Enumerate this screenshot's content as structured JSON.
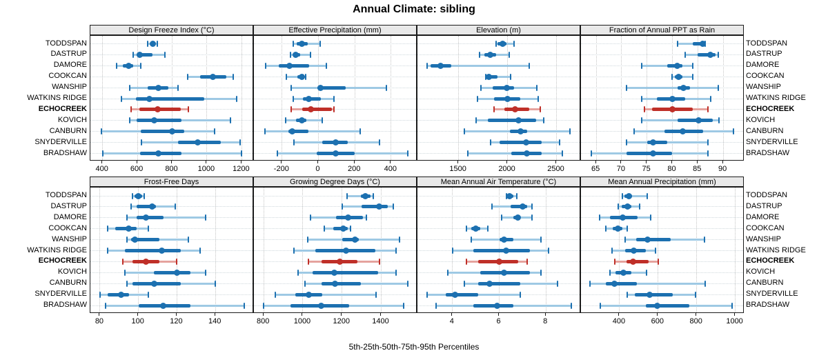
{
  "title": "Annual Climate: sibling",
  "caption": "5th-25th-50th-75th-95th Percentiles",
  "sites": [
    "TODDSPAN",
    "DASTRUP",
    "DAMORE",
    "COOKCAN",
    "WANSHIP",
    "WATKINS RIDGE",
    "ECHOCREEK",
    "KOVICH",
    "CANBURN",
    "SNYDERVILLE",
    "BRADSHAW"
  ],
  "highlight_site": "ECHOCREEK",
  "colors": {
    "series_dark": "#1c70b0",
    "series_light": "#9ec9e4",
    "highlight_dark": "#bf2f28",
    "highlight_light": "#e5a29d",
    "strip_bg": "#e9e9e9",
    "grid": "#c3c3c3"
  },
  "chart_data": [
    {
      "type": "dotplot-percentiles",
      "title": "Design Freeze Index (°C)",
      "row": 0,
      "col": 0,
      "xlim": [
        330,
        1270
      ],
      "ticks": [
        400,
        600,
        800,
        1000,
        1200
      ],
      "percentiles": [
        5,
        25,
        50,
        75,
        95
      ],
      "values": [
        [
          660,
          675,
          690,
          700,
          715
        ],
        [
          575,
          595,
          615,
          685,
          760
        ],
        [
          480,
          515,
          550,
          575,
          620
        ],
        [
          890,
          960,
          1035,
          1110,
          1150
        ],
        [
          555,
          660,
          720,
          780,
          835
        ],
        [
          510,
          590,
          670,
          985,
          1170
        ],
        [
          565,
          610,
          715,
          850,
          895
        ],
        [
          555,
          595,
          695,
          855,
          1135
        ],
        [
          395,
          620,
          800,
          870,
          1045
        ],
        [
          625,
          835,
          945,
          1080,
          1190
        ],
        [
          400,
          615,
          720,
          855,
          1200
        ]
      ]
    },
    {
      "type": "dotplot-percentiles",
      "title": "Effective Precipitation (mm)",
      "row": 0,
      "col": 1,
      "xlim": [
        -355,
        545
      ],
      "ticks": [
        -200,
        0,
        200,
        400
      ],
      "percentiles": [
        5,
        25,
        50,
        75,
        95
      ],
      "values": [
        [
          -140,
          -120,
          -90,
          -60,
          10
        ],
        [
          -155,
          -140,
          -125,
          -100,
          -45
        ],
        [
          -290,
          -220,
          -160,
          -50,
          45
        ],
        [
          -177,
          -114,
          -92,
          -76,
          -72
        ],
        [
          -150,
          -5,
          10,
          150,
          375
        ],
        [
          -140,
          -85,
          -55,
          15,
          85
        ],
        [
          -150,
          -90,
          -40,
          75,
          85
        ],
        [
          -180,
          -125,
          -90,
          -65,
          20
        ],
        [
          -295,
          -165,
          -145,
          -55,
          230
        ],
        [
          -135,
          20,
          95,
          160,
          335
        ],
        [
          -225,
          -10,
          95,
          200,
          490
        ]
      ]
    },
    {
      "type": "dotplot-percentiles",
      "title": "Elevation (m)",
      "row": 0,
      "col": 2,
      "xlim": [
        1080,
        2750
      ],
      "ticks": [
        1500,
        2000,
        2500
      ],
      "percentiles": [
        5,
        25,
        50,
        75,
        95
      ],
      "values": [
        [
          1885,
          1900,
          1950,
          1990,
          2065
        ],
        [
          1715,
          1765,
          1820,
          1885,
          2015
        ],
        [
          1180,
          1215,
          1315,
          1425,
          2225
        ],
        [
          1775,
          1785,
          1812,
          1895,
          2030
        ],
        [
          1730,
          1845,
          1990,
          2070,
          2300
        ],
        [
          1690,
          1860,
          2000,
          2130,
          2315
        ],
        [
          1865,
          1965,
          2080,
          2225,
          2335
        ],
        [
          1680,
          1800,
          2115,
          2295,
          2370
        ],
        [
          1560,
          2025,
          2135,
          2200,
          2640
        ],
        [
          1825,
          1915,
          2190,
          2350,
          2535
        ],
        [
          1595,
          2035,
          2195,
          2350,
          2560
        ]
      ]
    },
    {
      "type": "dotplot-percentiles",
      "title": "Fraction of Annual PPT as Rain",
      "row": 0,
      "col": 3,
      "xlim": [
        62,
        94.2
      ],
      "ticks": [
        65,
        70,
        75,
        80,
        85,
        90
      ],
      "percentiles": [
        5,
        25,
        50,
        75,
        95
      ],
      "values": [
        [
          81,
          84,
          86,
          86.3,
          86.5
        ],
        [
          82.5,
          85,
          87.5,
          88.5,
          89
        ],
        [
          74,
          79,
          81,
          82,
          84
        ],
        [
          80,
          80.5,
          81.2,
          82,
          84
        ],
        [
          71,
          81,
          82.2,
          83.5,
          89
        ],
        [
          74,
          77,
          80,
          82.5,
          87.5
        ],
        [
          74.5,
          76,
          80,
          84,
          87
        ],
        [
          74,
          81,
          85.2,
          88,
          89.2
        ],
        [
          72.5,
          78.5,
          82,
          86,
          92
        ],
        [
          71,
          75,
          76.2,
          79,
          87
        ],
        [
          64,
          71,
          76.2,
          80,
          87
        ]
      ]
    },
    {
      "type": "dotplot-percentiles",
      "title": "Frost-Free Days",
      "row": 1,
      "col": 0,
      "xlim": [
        75,
        160
      ],
      "ticks": [
        80,
        100,
        120,
        140
      ],
      "percentiles": [
        5,
        25,
        50,
        75,
        95
      ],
      "values": [
        [
          97,
          98,
          100,
          102,
          103
        ],
        [
          96,
          99,
          107,
          109,
          119
        ],
        [
          94,
          99,
          104,
          113,
          135
        ],
        [
          84,
          88,
          95,
          99,
          105
        ],
        [
          94,
          96,
          98,
          111,
          126
        ],
        [
          84,
          93,
          112,
          122,
          132
        ],
        [
          92,
          97,
          104,
          111,
          120
        ],
        [
          93,
          108,
          120,
          127,
          135
        ],
        [
          94,
          97,
          108,
          122,
          140
        ],
        [
          80,
          84,
          91,
          95,
          105
        ],
        [
          83,
          100,
          113,
          127,
          155
        ]
      ]
    },
    {
      "type": "dotplot-percentiles",
      "title": "Growing Degree Days (°C)",
      "row": 1,
      "col": 1,
      "xlim": [
        750,
        1585
      ],
      "ticks": [
        800,
        1000,
        1200,
        1400
      ],
      "percentiles": [
        5,
        25,
        50,
        75,
        95
      ],
      "values": [
        [
          1225,
          1295,
          1320,
          1345,
          1360
        ],
        [
          1200,
          1300,
          1390,
          1435,
          1460
        ],
        [
          1040,
          1170,
          1230,
          1305,
          1325
        ],
        [
          1110,
          1155,
          1205,
          1230,
          1245
        ],
        [
          1025,
          1200,
          1265,
          1285,
          1495
        ],
        [
          955,
          1065,
          1220,
          1370,
          1475
        ],
        [
          1030,
          1095,
          1190,
          1280,
          1390
        ],
        [
          975,
          1050,
          1160,
          1385,
          1475
        ],
        [
          1010,
          1095,
          1165,
          1295,
          1535
        ],
        [
          860,
          960,
          1030,
          1100,
          1375
        ],
        [
          800,
          935,
          1095,
          1235,
          1515
        ]
      ]
    },
    {
      "type": "dotplot-percentiles",
      "title": "Mean Annual Air Temperature (°C)",
      "row": 1,
      "col": 2,
      "xlim": [
        2.5,
        9.5
      ],
      "ticks": [
        4,
        6,
        8
      ],
      "percentiles": [
        5,
        25,
        50,
        75,
        95
      ],
      "values": [
        [
          6.3,
          6.35,
          6.45,
          6.6,
          6.75
        ],
        [
          5.7,
          6.5,
          7.0,
          7.2,
          7.4
        ],
        [
          6.1,
          6.6,
          6.8,
          6.9,
          7.4
        ],
        [
          4.6,
          4.8,
          5.0,
          5.2,
          5.5
        ],
        [
          4.8,
          6.0,
          6.2,
          6.6,
          7.8
        ],
        [
          4.0,
          4.9,
          6.3,
          7.3,
          8.1
        ],
        [
          4.6,
          5.1,
          6.0,
          6.8,
          7.2
        ],
        [
          3.8,
          5.2,
          6.2,
          7.3,
          7.8
        ],
        [
          4.5,
          5.1,
          5.6,
          6.9,
          8.5
        ],
        [
          2.9,
          3.7,
          4.1,
          5.1,
          6.9
        ],
        [
          3.3,
          4.9,
          5.9,
          6.6,
          9.1
        ]
      ]
    },
    {
      "type": "dotplot-percentiles",
      "title": "Mean Annual Precipitation (mm)",
      "row": 1,
      "col": 3,
      "xlim": [
        200,
        1048
      ],
      "ticks": [
        400,
        600,
        800,
        1000
      ],
      "percentiles": [
        5,
        25,
        50,
        75,
        95
      ],
      "values": [
        [
          415,
          425,
          450,
          465,
          545
        ],
        [
          395,
          410,
          440,
          460,
          505
        ],
        [
          295,
          350,
          415,
          495,
          560
        ],
        [
          330,
          365,
          393,
          415,
          440
        ],
        [
          430,
          485,
          545,
          665,
          840
        ],
        [
          360,
          430,
          475,
          535,
          585
        ],
        [
          375,
          435,
          470,
          550,
          600
        ],
        [
          350,
          380,
          420,
          460,
          540
        ],
        [
          245,
          330,
          375,
          490,
          845
        ],
        [
          440,
          480,
          555,
          675,
          795
        ],
        [
          300,
          535,
          595,
          760,
          985
        ]
      ]
    }
  ]
}
